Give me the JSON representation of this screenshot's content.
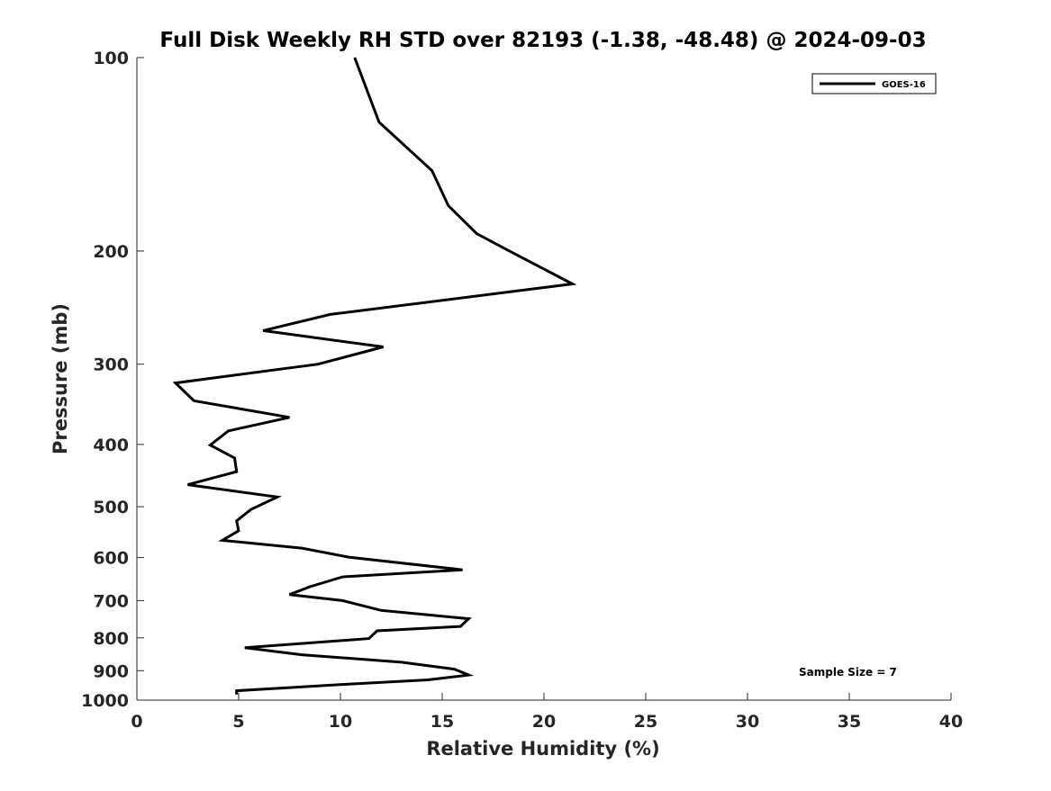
{
  "chart_data": {
    "type": "line",
    "title": "Full Disk Weekly RH STD over 82193 (-1.38, -48.48) @ 2024-09-03",
    "xlabel": "Relative Humidity (%)",
    "ylabel": "Pressure (mb)",
    "xlim": [
      0,
      40
    ],
    "ylim": [
      1000,
      100
    ],
    "y_scale": "log",
    "y_reversed": true,
    "grid": false,
    "x_ticks": [
      "0",
      "5",
      "10",
      "15",
      "20",
      "25",
      "30",
      "35",
      "40"
    ],
    "y_ticks": [
      "100",
      "200",
      "300",
      "400",
      "500",
      "600",
      "700",
      "800",
      "900",
      "1000"
    ],
    "legend": {
      "placement": "top-right",
      "entries": [
        "GOES-16"
      ]
    },
    "annotation": "Sample Size = 7",
    "series": [
      {
        "name": "GOES-16",
        "color": "#000000",
        "points": [
          [
            10.7,
            100
          ],
          [
            11.9,
            126
          ],
          [
            14.5,
            150
          ],
          [
            15.3,
            170
          ],
          [
            16.7,
            188
          ],
          [
            18.3,
            200
          ],
          [
            21.4,
            225
          ],
          [
            9.5,
            251
          ],
          [
            6.2,
            266
          ],
          [
            12.1,
            282
          ],
          [
            8.9,
            300
          ],
          [
            1.9,
            321
          ],
          [
            2.8,
            342
          ],
          [
            7.5,
            363
          ],
          [
            4.5,
            381
          ],
          [
            3.6,
            401
          ],
          [
            4.8,
            420
          ],
          [
            4.9,
            441
          ],
          [
            2.5,
            462
          ],
          [
            6.9,
            483
          ],
          [
            5.6,
            505
          ],
          [
            4.9,
            526
          ],
          [
            5.0,
            545
          ],
          [
            4.2,
            564
          ],
          [
            8.1,
            580
          ],
          [
            10.4,
            599
          ],
          [
            16.0,
            627
          ],
          [
            10.1,
            643
          ],
          [
            8.5,
            666
          ],
          [
            7.5,
            685
          ],
          [
            10.1,
            700
          ],
          [
            12.0,
            725
          ],
          [
            16.3,
            747
          ],
          [
            15.9,
            768
          ],
          [
            11.8,
            780
          ],
          [
            11.4,
            802
          ],
          [
            5.3,
            829
          ],
          [
            8.1,
            850
          ],
          [
            13.0,
            873
          ],
          [
            15.6,
            895
          ],
          [
            16.3,
            914
          ],
          [
            14.3,
            930
          ],
          [
            10.5,
            944
          ],
          [
            4.9,
            967
          ],
          [
            4.9,
            980
          ]
        ]
      }
    ]
  }
}
